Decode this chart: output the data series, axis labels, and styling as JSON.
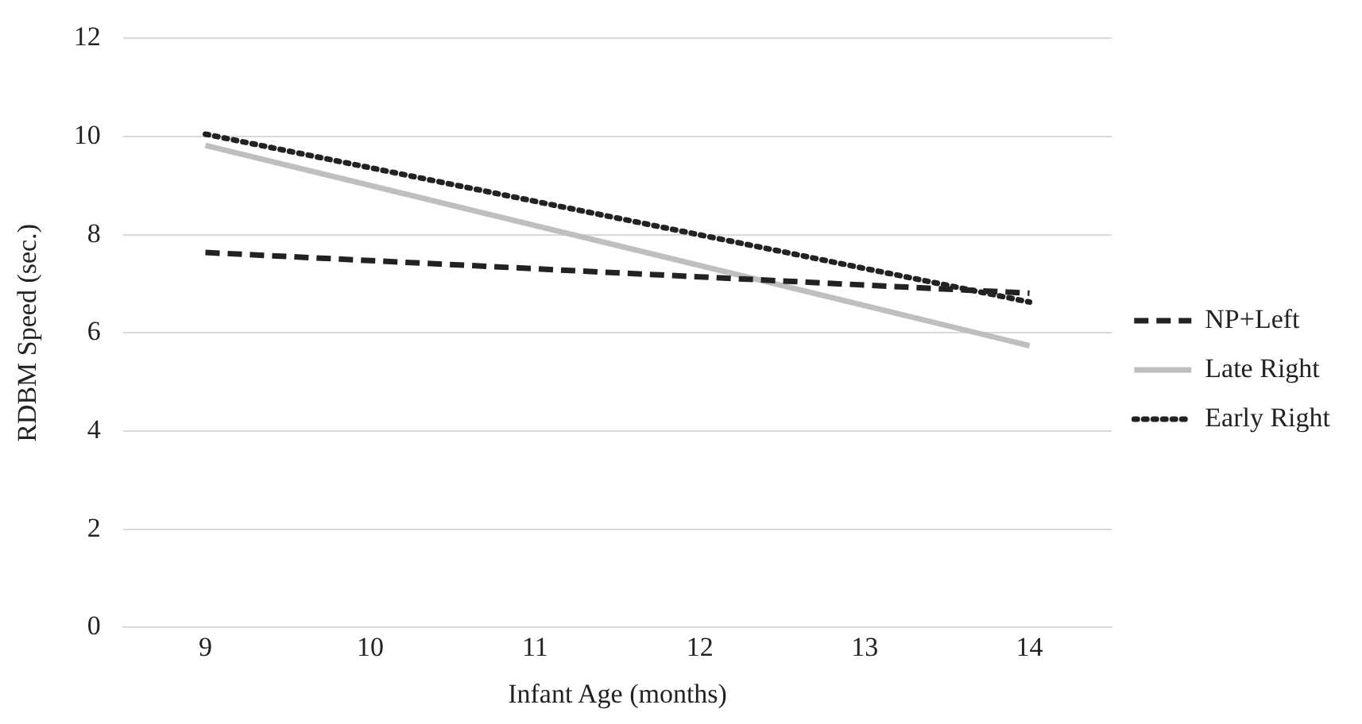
{
  "chart_data": {
    "type": "line",
    "xlabel": "Infant Age (months)",
    "ylabel": "RDBM Speed (sec.)",
    "xlim": [
      8.5,
      14.5
    ],
    "xticks": [
      9,
      10,
      11,
      12,
      13,
      14
    ],
    "ylim": [
      0,
      12
    ],
    "yticks": [
      0,
      2,
      4,
      6,
      8,
      10,
      12
    ],
    "grid": "y",
    "legend": "right",
    "marker": "none",
    "x": [
      9,
      14
    ],
    "series": [
      {
        "name": "NP+Left",
        "color": "#222222",
        "line_style": "dashed",
        "values": [
          7.64,
          6.81
        ]
      },
      {
        "name": "Late Right",
        "color": "#bfbfbf",
        "line_style": "solid",
        "values": [
          9.82,
          5.74
        ]
      },
      {
        "name": "Early Right",
        "color": "#222222",
        "line_style": "dotted",
        "values": [
          10.05,
          6.63
        ]
      }
    ]
  }
}
